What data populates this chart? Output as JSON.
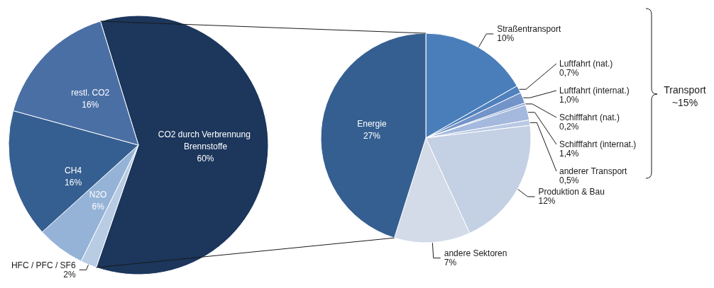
{
  "chart_data": [
    {
      "type": "pie",
      "categories": [
        "CO2 durch Verbrennung Brennstoffe",
        "HFC / PFC / SF6",
        "N2O",
        "CH4",
        "restl. CO2"
      ],
      "values": [
        60,
        2,
        6,
        16,
        16
      ],
      "value_labels": [
        "60%",
        "2%",
        "6%",
        "16%",
        "16%"
      ],
      "colors": [
        "#1c365c",
        "#b8cce4",
        "#95b3d7",
        "#365f91",
        "#4a6fa5"
      ]
    },
    {
      "type": "pie",
      "categories": [
        "Straßentransport",
        "Luftfahrt (nat.)",
        "Luftfahrt (internat.)",
        "Schifffahrt (nat.)",
        "Schifffahrt (internat.)",
        "anderer Transport",
        "Produktion & Bau",
        "andere Sektoren",
        "Energie"
      ],
      "values": [
        10,
        0.7,
        1.0,
        0.2,
        1.4,
        0.5,
        12,
        7,
        27
      ],
      "value_labels": [
        "10%",
        "0,7%",
        "1,0%",
        "0,2%",
        "1,4%",
        "0,5%",
        "12%",
        "7%",
        "27%"
      ],
      "colors": [
        "#4a7ebb",
        "#4f81bd",
        "#7394c9",
        "#8ea9d4",
        "#a4b9dd",
        "#b9c9e4",
        "#c4d0e3",
        "#d3dae8",
        "#355f91"
      ],
      "annotations": [
        "Transport ~15%"
      ]
    }
  ]
}
